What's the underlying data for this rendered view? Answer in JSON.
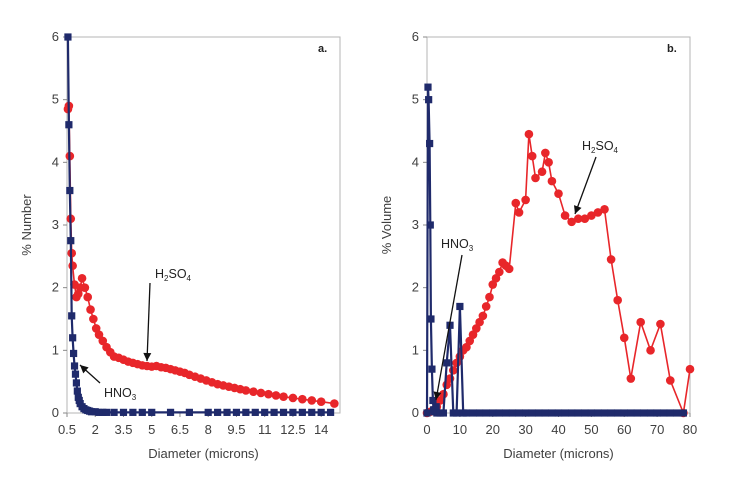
{
  "chart_data": [
    {
      "type": "line",
      "panel_label": "a.",
      "xlabel": "Diameter (microns)",
      "ylabel": "% Number",
      "xlim": [
        0.5,
        15
      ],
      "ylim": [
        0,
        6
      ],
      "xticks": [
        0.5,
        2,
        3.5,
        5,
        6.5,
        8,
        9.5,
        11,
        12.5,
        14
      ],
      "xtick_labels": [
        "0.5",
        "2",
        "3.5",
        "5",
        "6.5",
        "8",
        "9.5",
        "11",
        "12.5",
        "14"
      ],
      "yticks": [
        0,
        1,
        2,
        3,
        4,
        5,
        6
      ],
      "grid": false,
      "series": [
        {
          "name": "H2SO4",
          "label_main": "H",
          "label_sub1": "2",
          "label_mid": "SO",
          "label_sub2": "4",
          "color": "#e8262a",
          "marker": "circle",
          "x": [
            0.55,
            0.6,
            0.65,
            0.7,
            0.75,
            0.8,
            0.9,
            1.0,
            1.1,
            1.2,
            1.3,
            1.45,
            1.6,
            1.75,
            1.9,
            2.05,
            2.2,
            2.4,
            2.6,
            2.8,
            3.0,
            3.25,
            3.5,
            3.75,
            4.0,
            4.25,
            4.5,
            4.75,
            5.0,
            5.25,
            5.5,
            5.75,
            6.0,
            6.25,
            6.5,
            6.75,
            7.0,
            7.3,
            7.6,
            7.9,
            8.2,
            8.5,
            8.8,
            9.1,
            9.4,
            9.7,
            10.0,
            10.4,
            10.8,
            11.2,
            11.6,
            12.0,
            12.5,
            13.0,
            13.5,
            14.0,
            14.7
          ],
          "y": [
            4.85,
            4.9,
            4.1,
            3.1,
            2.55,
            2.35,
            2.05,
            1.85,
            1.9,
            2.0,
            2.15,
            2.0,
            1.85,
            1.65,
            1.5,
            1.35,
            1.25,
            1.15,
            1.05,
            0.97,
            0.9,
            0.88,
            0.85,
            0.82,
            0.8,
            0.78,
            0.76,
            0.75,
            0.74,
            0.75,
            0.73,
            0.72,
            0.7,
            0.68,
            0.66,
            0.64,
            0.61,
            0.58,
            0.55,
            0.52,
            0.49,
            0.46,
            0.44,
            0.42,
            0.4,
            0.38,
            0.36,
            0.34,
            0.32,
            0.3,
            0.28,
            0.26,
            0.24,
            0.22,
            0.2,
            0.18,
            0.15
          ]
        },
        {
          "name": "HNO3",
          "label_main": "HNO",
          "label_sub1": "3",
          "color": "#1f2a6b",
          "marker": "square",
          "x": [
            0.55,
            0.6,
            0.65,
            0.7,
            0.75,
            0.8,
            0.85,
            0.9,
            0.95,
            1.0,
            1.05,
            1.1,
            1.15,
            1.2,
            1.3,
            1.4,
            1.5,
            1.6,
            1.7,
            1.8,
            2.0,
            2.2,
            2.4,
            2.6,
            3.0,
            3.5,
            4.0,
            4.5,
            5.0,
            6.0,
            7.0,
            8.0,
            8.5,
            9.0,
            9.5,
            10.0,
            10.5,
            11.0,
            11.5,
            12.0,
            12.5,
            13.0,
            13.5,
            14.0,
            14.5
          ],
          "y": [
            6.0,
            4.6,
            3.55,
            2.75,
            1.55,
            1.2,
            0.95,
            0.75,
            0.62,
            0.48,
            0.35,
            0.25,
            0.2,
            0.15,
            0.1,
            0.07,
            0.05,
            0.04,
            0.03,
            0.02,
            0.02,
            0.01,
            0.01,
            0.01,
            0.01,
            0.01,
            0.01,
            0.01,
            0.01,
            0.01,
            0.01,
            0.01,
            0.01,
            0.01,
            0.01,
            0.01,
            0.01,
            0.01,
            0.01,
            0.01,
            0.01,
            0.01,
            0.01,
            0.01,
            0.01
          ]
        }
      ]
    },
    {
      "type": "line",
      "panel_label": "b.",
      "xlabel": "Diameter (microns)",
      "ylabel": "% Volume",
      "xlim": [
        0,
        80
      ],
      "ylim": [
        0,
        6
      ],
      "xticks": [
        0,
        10,
        20,
        30,
        40,
        50,
        60,
        70,
        80
      ],
      "xtick_labels": [
        "0",
        "10",
        "20",
        "30",
        "40",
        "50",
        "60",
        "70",
        "80"
      ],
      "yticks": [
        0,
        1,
        2,
        3,
        4,
        5,
        6
      ],
      "grid": false,
      "series": [
        {
          "name": "H2SO4",
          "label_main": "H",
          "label_sub1": "2",
          "label_mid": "SO",
          "label_sub2": "4",
          "color": "#e8262a",
          "marker": "circle",
          "x": [
            0,
            1,
            2,
            3,
            4,
            5,
            6,
            7,
            8,
            9,
            10,
            11,
            12,
            13,
            14,
            15,
            16,
            17,
            18,
            19,
            20,
            21,
            22,
            23,
            24,
            25,
            27,
            28,
            30,
            31,
            32,
            33,
            35,
            36,
            37,
            38,
            40,
            42,
            44,
            46,
            48,
            50,
            52,
            54,
            56,
            58,
            60,
            62,
            65,
            68,
            71,
            74,
            78,
            80
          ],
          "y": [
            0.0,
            0.02,
            0.05,
            0.1,
            0.2,
            0.3,
            0.45,
            0.55,
            0.68,
            0.8,
            0.9,
            1.0,
            1.05,
            1.15,
            1.25,
            1.35,
            1.45,
            1.55,
            1.7,
            1.85,
            2.05,
            2.15,
            2.25,
            2.4,
            2.35,
            2.3,
            3.35,
            3.2,
            3.4,
            4.45,
            4.1,
            3.75,
            3.85,
            4.15,
            4.0,
            3.7,
            3.5,
            3.15,
            3.05,
            3.1,
            3.1,
            3.15,
            3.2,
            3.25,
            2.45,
            1.8,
            1.2,
            0.55,
            1.45,
            1.0,
            1.42,
            0.52,
            0.0,
            0.7
          ]
        },
        {
          "name": "HNO3",
          "label_main": "HNO",
          "label_sub1": "3",
          "color": "#1f2a6b",
          "marker": "square",
          "x": [
            0,
            0.3,
            0.5,
            0.8,
            1.0,
            1.2,
            1.5,
            1.8,
            2,
            2.2,
            2.5,
            2.8,
            3,
            4,
            5,
            6,
            7,
            8,
            9,
            10,
            11,
            12,
            14,
            16,
            18,
            20,
            22,
            24,
            26,
            28,
            30,
            32,
            34,
            36,
            38,
            40,
            42,
            44,
            46,
            48,
            50,
            52,
            54,
            56,
            58,
            60,
            62,
            64,
            66,
            68,
            70,
            72,
            74,
            76,
            78
          ],
          "y": [
            0.0,
            5.2,
            5.0,
            4.3,
            3.0,
            1.5,
            0.7,
            0.2,
            0.05,
            0.02,
            0.05,
            0.1,
            0.0,
            0.0,
            0.0,
            0.8,
            1.4,
            0.0,
            0.0,
            1.7,
            0.0,
            0.0,
            0.0,
            0.0,
            0.0,
            0.0,
            0.0,
            0.0,
            0.0,
            0.0,
            0.0,
            0.0,
            0.0,
            0.0,
            0.0,
            0.0,
            0.0,
            0.0,
            0.0,
            0.0,
            0.0,
            0.0,
            0.0,
            0.0,
            0.0,
            0.0,
            0.0,
            0.0,
            0.0,
            0.0,
            0.0,
            0.0,
            0.0,
            0.0,
            0.0
          ]
        }
      ]
    }
  ]
}
